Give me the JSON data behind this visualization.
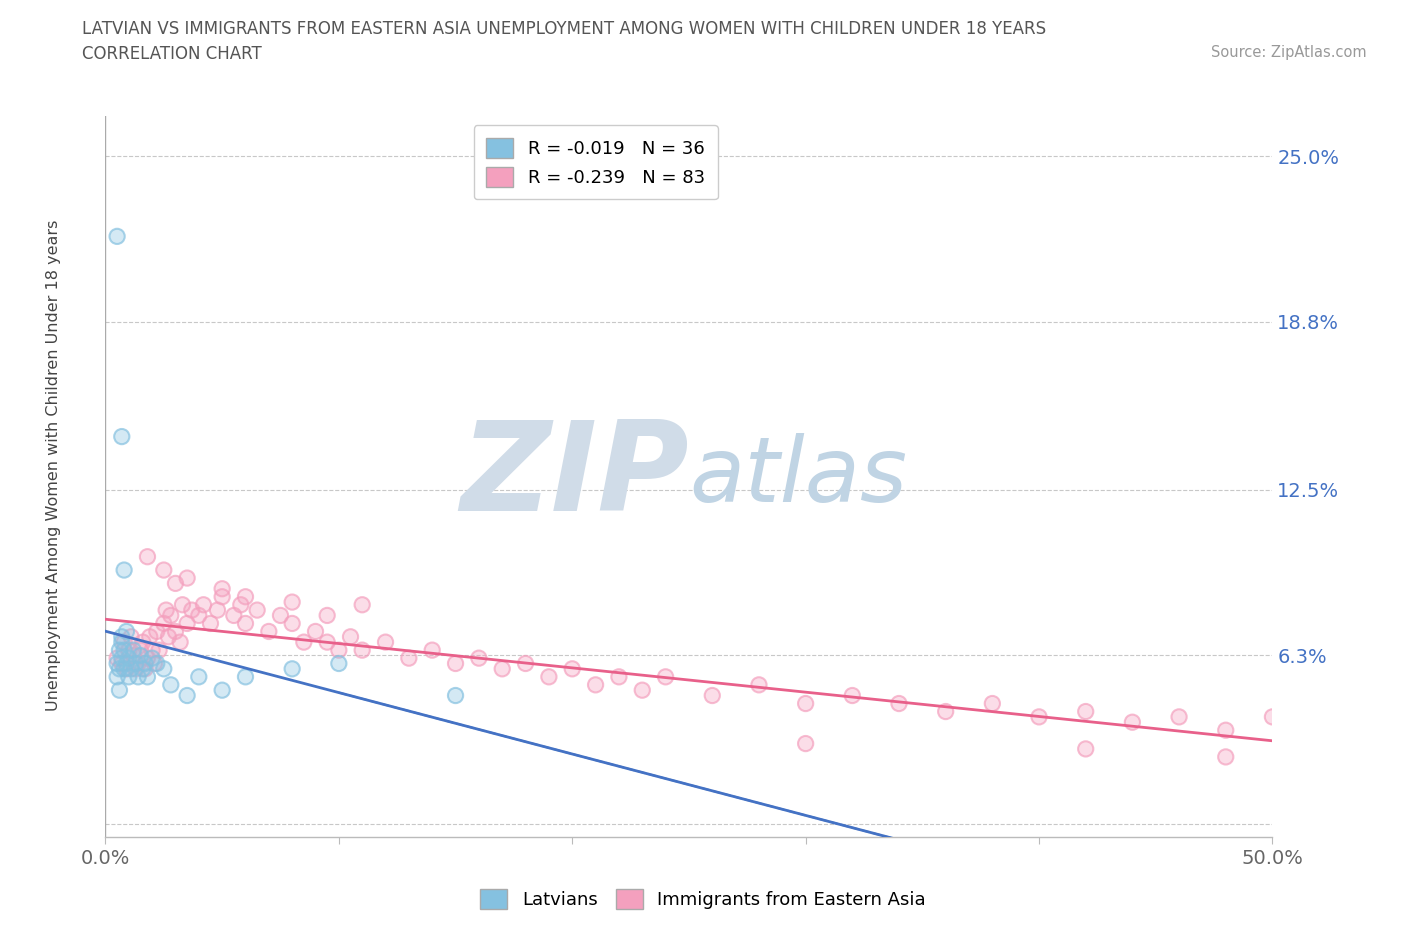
{
  "title_line1": "LATVIAN VS IMMIGRANTS FROM EASTERN ASIA UNEMPLOYMENT AMONG WOMEN WITH CHILDREN UNDER 18 YEARS",
  "title_line2": "CORRELATION CHART",
  "source_text": "Source: ZipAtlas.com",
  "ylabel": "Unemployment Among Women with Children Under 18 years",
  "xlim": [
    0.0,
    0.5
  ],
  "ylim": [
    -0.005,
    0.265
  ],
  "yticks": [
    0.0,
    0.063,
    0.125,
    0.188,
    0.25
  ],
  "ytick_labels": [
    "",
    "6.3%",
    "12.5%",
    "18.8%",
    "25.0%"
  ],
  "xtick_positions": [
    0.0,
    0.1,
    0.2,
    0.3,
    0.4,
    0.5
  ],
  "xtick_labels": [
    "0.0%",
    "",
    "",
    "",
    "",
    "50.0%"
  ],
  "latvian_R": -0.019,
  "latvian_N": 36,
  "immigrant_R": -0.239,
  "immigrant_N": 83,
  "latvian_color": "#85c1e0",
  "immigrant_color": "#f4a0be",
  "latvian_line_color": "#4472c4",
  "immigrant_line_color": "#e8608a",
  "background_color": "#ffffff",
  "grid_color": "#c8c8c8",
  "watermark_zip_color": "#d0dce8",
  "watermark_atlas_color": "#c0d4e4",
  "title_color": "#555555",
  "ytick_color": "#4472c4",
  "xtick_color": "#666666",
  "latvian_x": [
    0.005,
    0.005,
    0.006,
    0.006,
    0.006,
    0.007,
    0.007,
    0.007,
    0.008,
    0.008,
    0.009,
    0.009,
    0.01,
    0.01,
    0.011,
    0.012,
    0.013,
    0.014,
    0.015,
    0.016,
    0.017,
    0.018,
    0.02,
    0.022,
    0.025,
    0.028,
    0.035,
    0.04,
    0.05,
    0.06,
    0.08,
    0.1,
    0.15,
    0.005,
    0.007,
    0.008
  ],
  "latvian_y": [
    0.06,
    0.055,
    0.065,
    0.058,
    0.05,
    0.062,
    0.068,
    0.07,
    0.058,
    0.065,
    0.06,
    0.072,
    0.055,
    0.062,
    0.058,
    0.065,
    0.06,
    0.055,
    0.063,
    0.058,
    0.06,
    0.055,
    0.062,
    0.06,
    0.058,
    0.052,
    0.048,
    0.055,
    0.05,
    0.055,
    0.058,
    0.06,
    0.048,
    0.22,
    0.145,
    0.095
  ],
  "immigrant_x": [
    0.005,
    0.007,
    0.008,
    0.009,
    0.01,
    0.011,
    0.012,
    0.013,
    0.014,
    0.015,
    0.016,
    0.017,
    0.018,
    0.019,
    0.02,
    0.021,
    0.022,
    0.023,
    0.025,
    0.026,
    0.027,
    0.028,
    0.03,
    0.032,
    0.033,
    0.035,
    0.037,
    0.04,
    0.042,
    0.045,
    0.048,
    0.05,
    0.055,
    0.058,
    0.06,
    0.065,
    0.07,
    0.075,
    0.08,
    0.085,
    0.09,
    0.095,
    0.1,
    0.105,
    0.11,
    0.12,
    0.13,
    0.14,
    0.15,
    0.16,
    0.17,
    0.18,
    0.19,
    0.2,
    0.21,
    0.22,
    0.23,
    0.24,
    0.26,
    0.28,
    0.3,
    0.32,
    0.34,
    0.36,
    0.38,
    0.4,
    0.42,
    0.44,
    0.46,
    0.48,
    0.5,
    0.018,
    0.025,
    0.03,
    0.035,
    0.05,
    0.06,
    0.08,
    0.095,
    0.11,
    0.3,
    0.42,
    0.48
  ],
  "immigrant_y": [
    0.062,
    0.06,
    0.068,
    0.058,
    0.065,
    0.07,
    0.063,
    0.058,
    0.06,
    0.065,
    0.068,
    0.058,
    0.062,
    0.07,
    0.065,
    0.06,
    0.072,
    0.065,
    0.075,
    0.08,
    0.07,
    0.078,
    0.072,
    0.068,
    0.082,
    0.075,
    0.08,
    0.078,
    0.082,
    0.075,
    0.08,
    0.085,
    0.078,
    0.082,
    0.075,
    0.08,
    0.072,
    0.078,
    0.075,
    0.068,
    0.072,
    0.068,
    0.065,
    0.07,
    0.065,
    0.068,
    0.062,
    0.065,
    0.06,
    0.062,
    0.058,
    0.06,
    0.055,
    0.058,
    0.052,
    0.055,
    0.05,
    0.055,
    0.048,
    0.052,
    0.045,
    0.048,
    0.045,
    0.042,
    0.045,
    0.04,
    0.042,
    0.038,
    0.04,
    0.035,
    0.04,
    0.1,
    0.095,
    0.09,
    0.092,
    0.088,
    0.085,
    0.083,
    0.078,
    0.082,
    0.03,
    0.028,
    0.025
  ]
}
